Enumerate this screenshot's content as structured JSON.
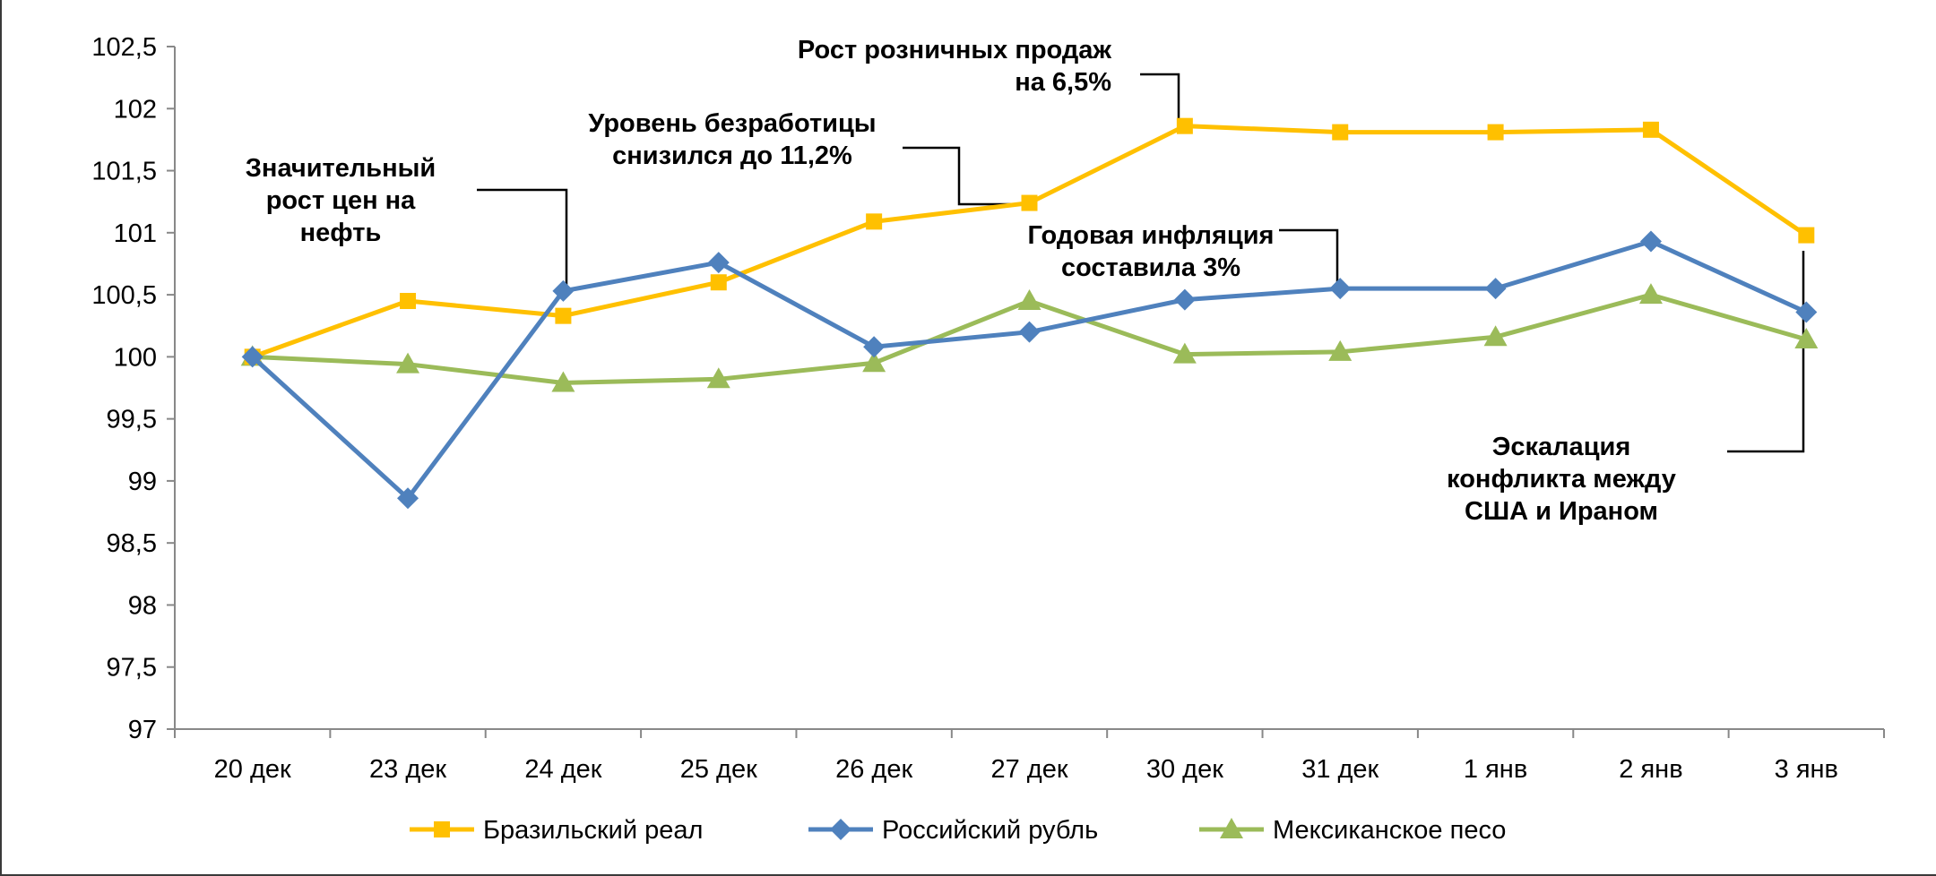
{
  "chart_data": {
    "type": "line",
    "categories": [
      "20 дек",
      "23 дек",
      "24 дек",
      "25 дек",
      "26 дек",
      "27 дек",
      "30 дек",
      "31 дек",
      "1 янв",
      "2 янв",
      "3 янв"
    ],
    "ylim": [
      97,
      102.5
    ],
    "yticks": [
      "97",
      "97,5",
      "98",
      "98,5",
      "99",
      "99,5",
      "100",
      "100,5",
      "101",
      "101,5",
      "102",
      "102,5"
    ],
    "grid": false,
    "legend_position": "bottom",
    "series": [
      {
        "name": "Бразильский  реал",
        "color": "#FFC000",
        "marker": "square",
        "values": [
          100.0,
          100.45,
          100.33,
          100.6,
          101.09,
          101.24,
          101.86,
          101.81,
          101.81,
          101.83,
          100.98
        ]
      },
      {
        "name": "Российский  рубль",
        "color": "#4F81BD",
        "marker": "diamond",
        "values": [
          100.0,
          98.86,
          100.53,
          100.76,
          100.08,
          100.2,
          100.46,
          100.55,
          100.55,
          100.93,
          100.36
        ]
      },
      {
        "name": "Мексиканское  песо",
        "color": "#9BBB59",
        "marker": "triangle",
        "values": [
          100.0,
          99.94,
          99.79,
          99.82,
          99.95,
          100.45,
          100.02,
          100.04,
          100.16,
          100.5,
          100.14
        ]
      }
    ],
    "annotations": [
      {
        "lines": [
          "Значительный",
          "рост цен на",
          "нефть"
        ]
      },
      {
        "lines": [
          "Уровень безработицы",
          "снизился до 11,2%"
        ]
      },
      {
        "lines": [
          "Рост розничных продаж",
          "на 6,5%"
        ]
      },
      {
        "lines": [
          "Годовая инфляция",
          "составила 3%"
        ]
      },
      {
        "lines": [
          "Эскалация",
          "конфликта между",
          "США и Ираном"
        ]
      }
    ]
  }
}
